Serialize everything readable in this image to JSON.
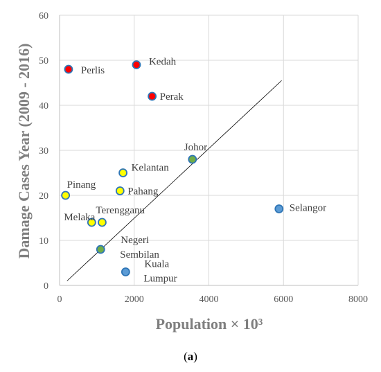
{
  "chart_data": {
    "type": "scatter",
    "xlabel": "Population × 10³",
    "ylabel": "Damage Cases Year (2009 - 2016)",
    "xlim": [
      0,
      8000
    ],
    "ylim": [
      0,
      60
    ],
    "xticks": [
      "0",
      "2000",
      "4000",
      "6000",
      "8000"
    ],
    "yticks": [
      "0",
      "10",
      "20",
      "30",
      "40",
      "50",
      "60"
    ],
    "grid": true,
    "points": [
      {
        "label": "Perlis",
        "x": 240,
        "y": 48,
        "fill": "#ff0000"
      },
      {
        "label": "Kedah",
        "x": 2060,
        "y": 49,
        "fill": "#ff0000"
      },
      {
        "label": "Perak",
        "x": 2480,
        "y": 42,
        "fill": "#ff0000"
      },
      {
        "label": "Johor",
        "x": 3560,
        "y": 28,
        "fill": "#70ad47"
      },
      {
        "label": "Kelantan",
        "x": 1700,
        "y": 25,
        "fill": "#ffff00"
      },
      {
        "label": "Pahang",
        "x": 1620,
        "y": 21,
        "fill": "#ffff00"
      },
      {
        "label": "Pinang",
        "x": 160,
        "y": 20,
        "fill": "#ffff00"
      },
      {
        "label": "Melaka",
        "x": 860,
        "y": 14,
        "fill": "#ffff00"
      },
      {
        "label": "Terengganu",
        "x": 1140,
        "y": 14,
        "fill": "#ffff00"
      },
      {
        "label": "Negeri Sembilan",
        "x": 1100,
        "y": 8,
        "fill": "#70ad47"
      },
      {
        "label": "Kuala Lumpur",
        "x": 1770,
        "y": 3,
        "fill": "#5b9bd5"
      },
      {
        "label": "Selangor",
        "x": 5880,
        "y": 17,
        "fill": "#5b9bd5"
      }
    ],
    "trendline": {
      "x": [
        200,
        5950
      ],
      "y": [
        1,
        45.5
      ]
    },
    "marker_edge_color": "#2e75b6"
  },
  "caption": {
    "open": "(",
    "letter": "a",
    "close": ")"
  }
}
